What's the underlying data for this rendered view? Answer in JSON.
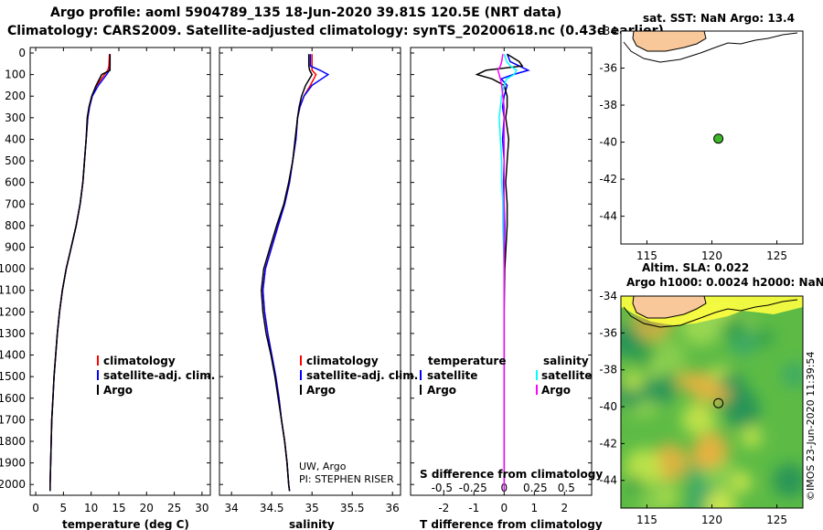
{
  "title_line1": "Argo profile: aoml 5904789_135 18-Jun-2020 39.81S 120.5E (NRT data)",
  "title_line2": "Climatology: CARS2009. Satellite-adjusted climatology: synTS_20200618.nc (0.43d earlier)",
  "credit1": "UW, Argo",
  "credit2": "PI: STEPHEN RISER",
  "imos": "©IMOS 23-Jun-2020 11:39:54",
  "colors": {
    "climatology": "#ff0000",
    "satellite": "#0000ff",
    "argo": "#000000",
    "t_sat": "#00e5ee",
    "s_sat": "#00ffff",
    "s_argo": "#ff00ff",
    "land": "#f8c89a"
  },
  "chart_data": [
    {
      "type": "line",
      "xlabel": "temperature (deg C)",
      "xticks": [
        "0",
        "5",
        "10",
        "15",
        "20",
        "25",
        "30"
      ],
      "xlim": [
        -1,
        31.5
      ],
      "ylim": [
        0,
        2050
      ],
      "yticks": [
        "0",
        "100",
        "200",
        "300",
        "400",
        "500",
        "600",
        "700",
        "800",
        "900",
        "1000",
        "1100",
        "1200",
        "1300",
        "1400",
        "1500",
        "1600",
        "1700",
        "1800",
        "1900",
        "2000"
      ],
      "legend": [
        "climatology",
        "satellite-adj. clim.",
        "Argo"
      ],
      "depth": [
        5,
        60,
        80,
        100,
        150,
        200,
        250,
        300,
        400,
        500,
        600,
        700,
        800,
        900,
        1000,
        1100,
        1200,
        1300,
        1400,
        1500,
        1600,
        1700,
        1800,
        1900,
        2000,
        2030
      ],
      "series": [
        {
          "name": "climatology",
          "values": [
            13.3,
            13.2,
            13.0,
            12.4,
            11.0,
            10.2,
            9.7,
            9.4,
            9.1,
            8.8,
            8.5,
            8.0,
            7.3,
            6.4,
            5.5,
            4.8,
            4.3,
            3.9,
            3.6,
            3.3,
            3.1,
            2.9,
            2.8,
            2.7,
            2.6,
            2.6
          ]
        },
        {
          "name": "satellite",
          "values": [
            13.4,
            13.4,
            13.3,
            12.8,
            11.3,
            10.2,
            9.7,
            9.4,
            9.1,
            8.8,
            8.5,
            8.0,
            7.3,
            6.4,
            5.5,
            4.8,
            4.3,
            3.9,
            3.6,
            3.3,
            3.1,
            2.9,
            2.8,
            2.7,
            2.6,
            2.6
          ]
        },
        {
          "name": "Argo",
          "values": [
            13.4,
            13.4,
            13.4,
            11.9,
            10.9,
            10.1,
            9.6,
            9.3,
            9.1,
            8.8,
            8.5,
            8.0,
            7.3,
            6.4,
            5.5,
            4.8,
            4.3,
            3.9,
            3.6,
            3.3,
            3.1,
            2.9,
            2.8,
            2.7,
            2.6,
            2.6
          ]
        }
      ]
    },
    {
      "type": "line",
      "xlabel": "salinity",
      "xticks": [
        "34",
        "34.5",
        "35",
        "35.5",
        "36"
      ],
      "xlim": [
        33.85,
        36.1
      ],
      "ylim": [
        0,
        2050
      ],
      "legend": [
        "climatology",
        "satellite-adj. clim.",
        "Argo"
      ],
      "depth": [
        5,
        60,
        80,
        100,
        150,
        200,
        250,
        300,
        400,
        500,
        600,
        700,
        800,
        900,
        1000,
        1100,
        1200,
        1300,
        1400,
        1500,
        1600,
        1700,
        1800,
        1900,
        2000,
        2030
      ],
      "series": [
        {
          "name": "climatology",
          "values": [
            35.0,
            35.0,
            35.0,
            35.05,
            34.98,
            34.9,
            34.85,
            34.82,
            34.8,
            34.76,
            34.72,
            34.66,
            34.58,
            34.5,
            34.42,
            34.39,
            34.41,
            34.45,
            34.5,
            34.55,
            34.59,
            34.62,
            34.66,
            34.69,
            34.71,
            34.72
          ]
        },
        {
          "name": "satellite",
          "values": [
            34.98,
            34.98,
            35.1,
            35.2,
            35.0,
            34.9,
            34.85,
            34.82,
            34.8,
            34.76,
            34.72,
            34.66,
            34.58,
            34.5,
            34.42,
            34.39,
            34.41,
            34.45,
            34.5,
            34.55,
            34.59,
            34.62,
            34.66,
            34.69,
            34.71,
            34.72
          ]
        },
        {
          "name": "Argo",
          "values": [
            34.96,
            34.96,
            34.97,
            35.0,
            34.92,
            34.87,
            34.84,
            34.82,
            34.79,
            34.76,
            34.71,
            34.65,
            34.56,
            34.48,
            34.4,
            34.37,
            34.39,
            34.43,
            34.49,
            34.54,
            34.58,
            34.62,
            34.66,
            34.69,
            34.71,
            34.72
          ]
        }
      ]
    },
    {
      "type": "line",
      "xlabel": "T difference from climatology",
      "xticks": [
        "-2",
        "-1",
        "0",
        "1",
        "2"
      ],
      "xlim": [
        -3.1,
        2.9
      ],
      "ylim": [
        0,
        2050
      ],
      "second_axis_label": "S difference from climatology",
      "second_axis_ticks": [
        "-0.5",
        "-0.25",
        "0",
        "0.25",
        "0.5"
      ],
      "legend_left_header": "temperature",
      "legend_right_header": "salinity",
      "legend_left": [
        "satellite",
        "Argo"
      ],
      "legend_right": [
        "satellite",
        "Argo"
      ],
      "depth": [
        5,
        40,
        60,
        80,
        100,
        120,
        150,
        200,
        250,
        300,
        400,
        500,
        600,
        700,
        800,
        1000,
        1200,
        1400,
        1600,
        1800,
        2000,
        2030
      ],
      "series": [
        {
          "name": "T satellite",
          "values": [
            0.1,
            0.2,
            0.5,
            0.8,
            0.3,
            -0.1,
            0.1,
            0.0,
            -0.05,
            0.0,
            -0.05,
            0.0,
            -0.02,
            0.0,
            0.02,
            0.0,
            0.0,
            0.0,
            0.0,
            0.0,
            0.0,
            0.0
          ]
        },
        {
          "name": "T Argo",
          "values": [
            0.1,
            0.5,
            0.6,
            -0.6,
            -0.9,
            -0.4,
            0.0,
            0.1,
            0.1,
            0.05,
            0.15,
            0.1,
            0.05,
            0.1,
            0.1,
            0.02,
            0.0,
            0.0,
            0.0,
            0.0,
            0.0,
            0.0
          ]
        },
        {
          "name": "S satellite",
          "values": [
            0.0,
            0.02,
            0.05,
            0.1,
            0.08,
            0.02,
            0.0,
            -0.02,
            -0.03,
            -0.04,
            -0.03,
            -0.02,
            -0.02,
            -0.01,
            -0.01,
            0.0,
            0.0,
            0.0,
            0.0,
            0.0,
            0.0,
            0.0
          ]
        },
        {
          "name": "S Argo",
          "values": [
            -0.01,
            -0.02,
            -0.03,
            -0.05,
            -0.04,
            -0.03,
            -0.02,
            -0.01,
            0.0,
            0.0,
            0.0,
            0.0,
            0.0,
            0.0,
            0.0,
            0.0,
            0.0,
            0.0,
            0.0,
            0.0,
            0.0,
            0.0
          ]
        }
      ]
    },
    {
      "type": "scatter",
      "title": "sat. SST: NaN Argo: 13.4",
      "xticks": [
        "115",
        "120",
        "125"
      ],
      "yticks": [
        "-34",
        "-36",
        "-38",
        "-40",
        "-42",
        "-44"
      ],
      "xlim": [
        113,
        127
      ],
      "ylim": [
        -45.5,
        -34
      ],
      "points": [
        {
          "lon": 120.5,
          "lat": -39.81
        }
      ]
    },
    {
      "type": "heatmap",
      "title_line1": "Altim. SLA: 0.022",
      "title_line2": "Argo h1000: 0.0024 h2000: NaN",
      "xticks": [
        "115",
        "120",
        "125"
      ],
      "yticks": [
        "-34",
        "-36",
        "-38",
        "-40",
        "-42",
        "-44"
      ],
      "xlim": [
        113,
        127
      ],
      "ylim": [
        -45.5,
        -34
      ],
      "points": [
        {
          "lon": 120.5,
          "lat": -39.81
        }
      ]
    }
  ]
}
